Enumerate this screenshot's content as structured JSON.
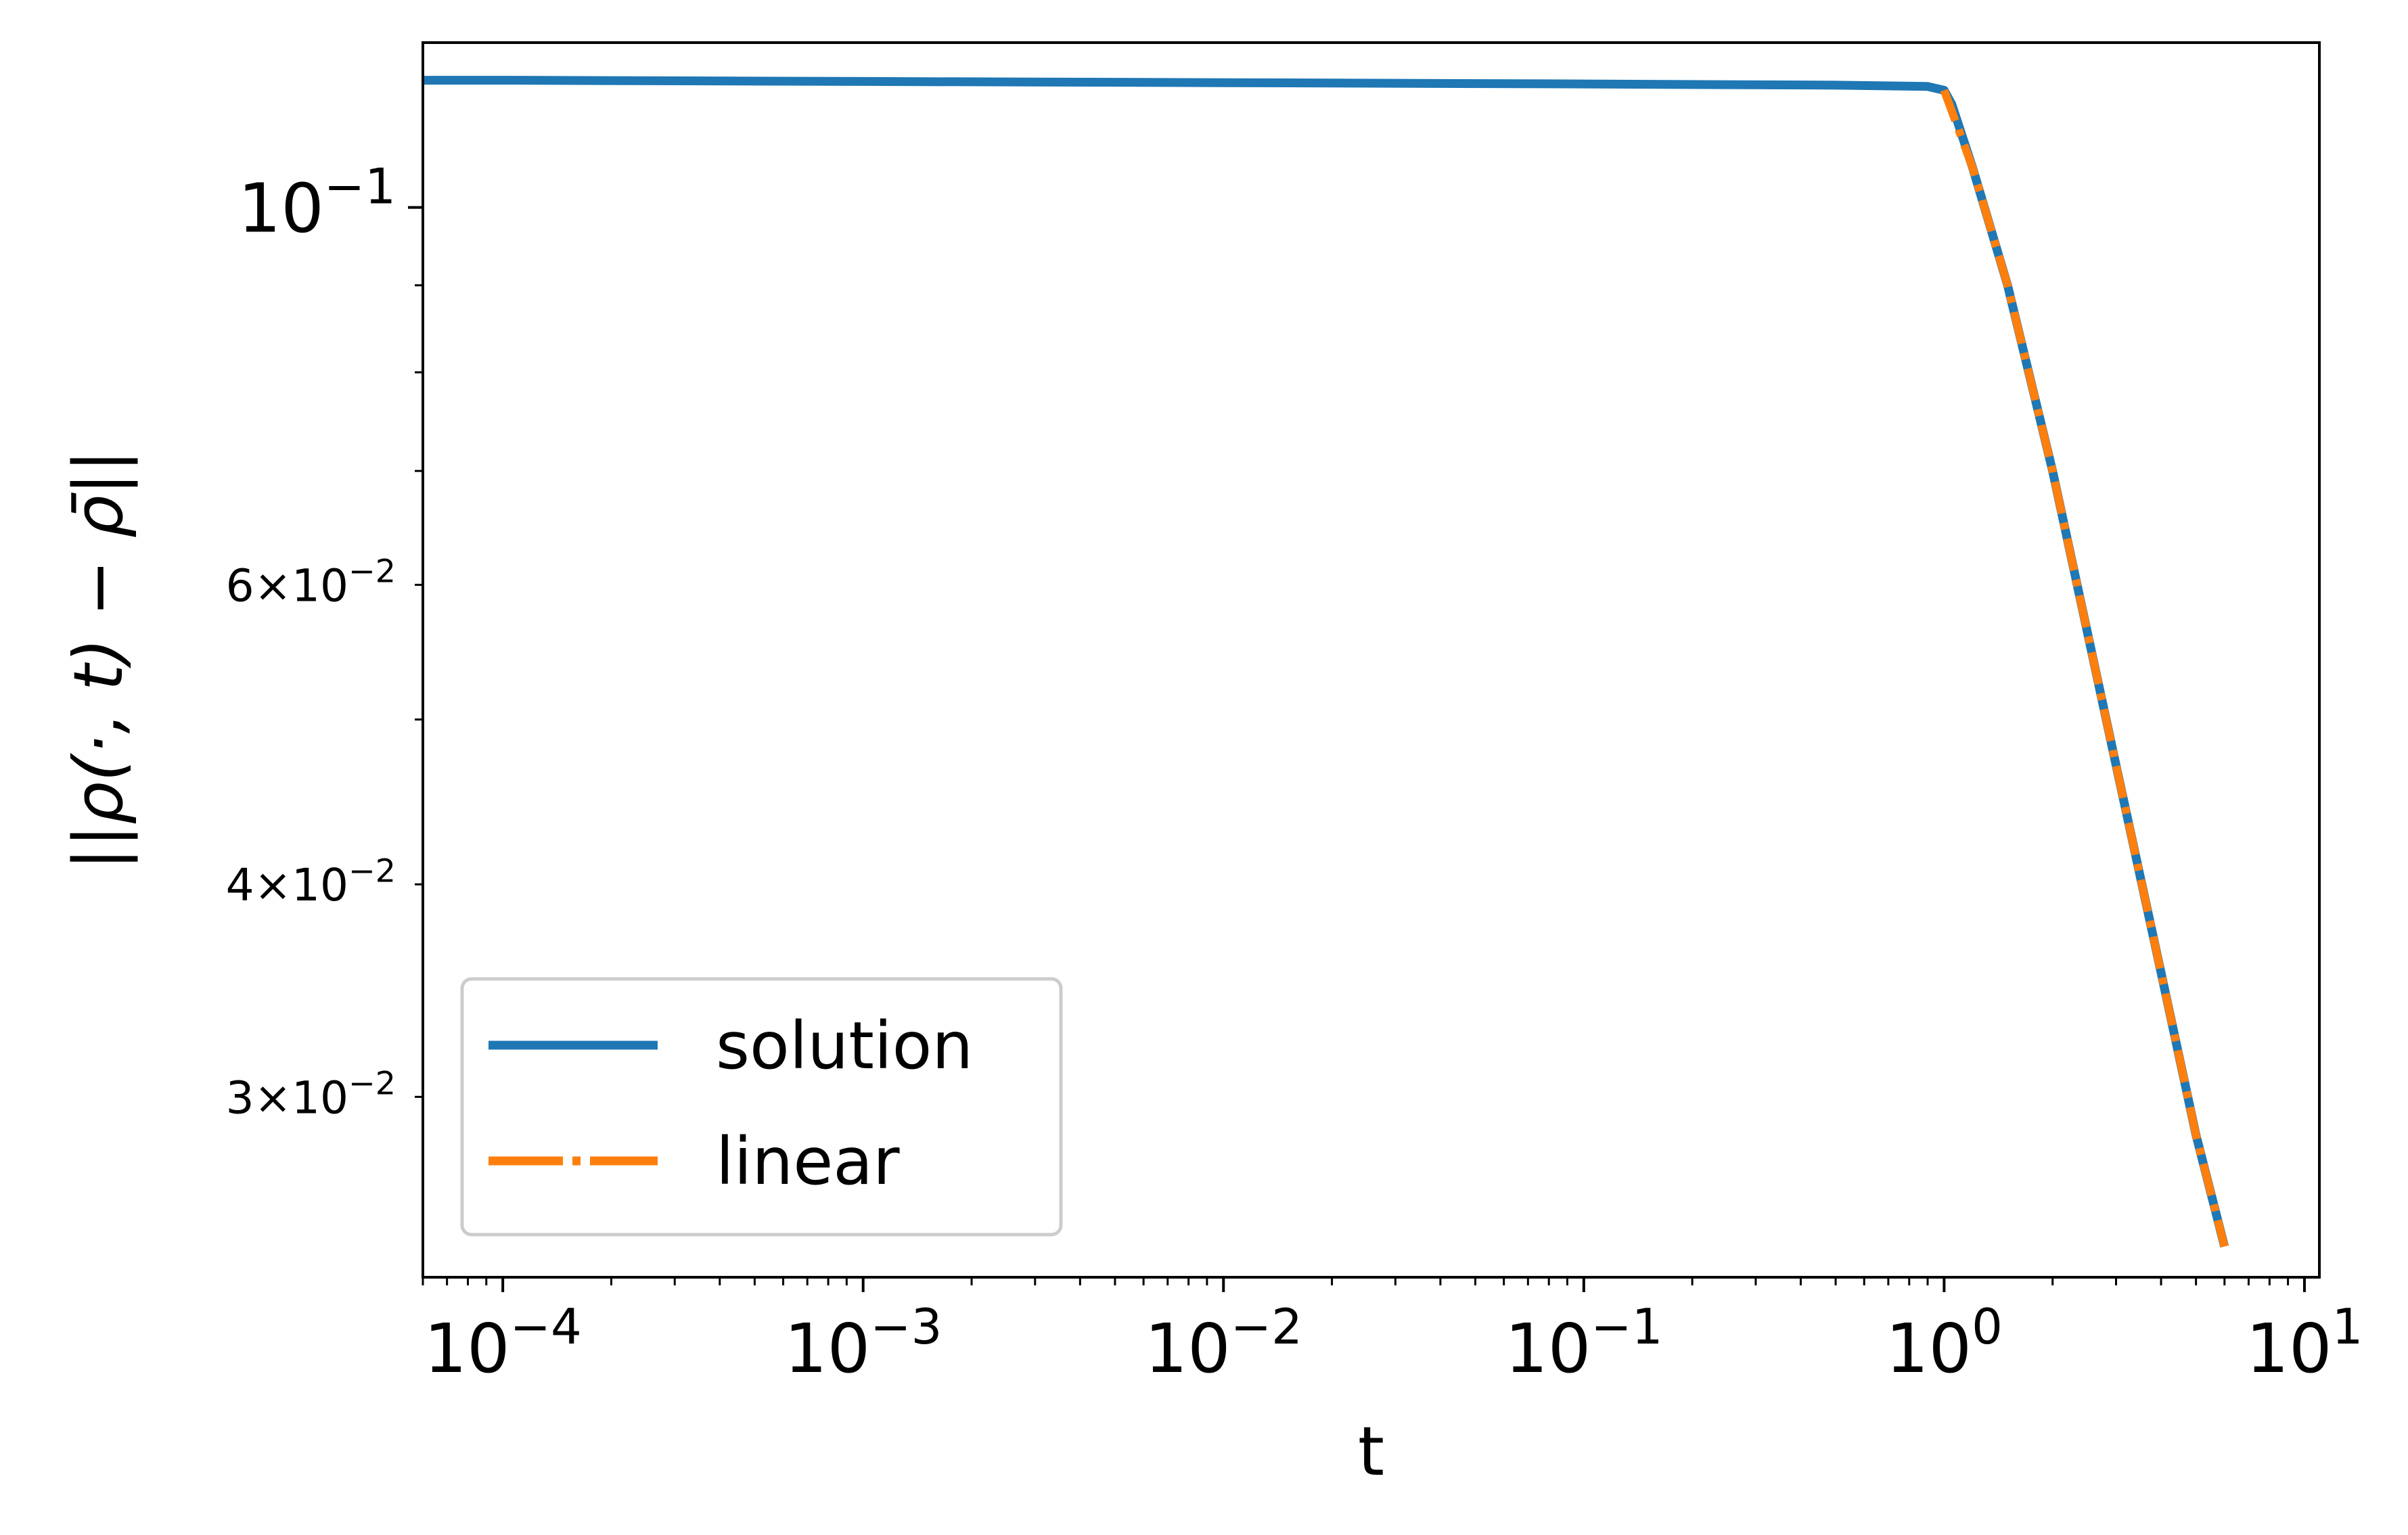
{
  "chart_data": {
    "type": "line",
    "xlabel": "t",
    "ylabel": "||ρ(·, t) − ρ̄||",
    "xscale": "log",
    "yscale": "log",
    "xlim": [
      6e-05,
      11
    ],
    "ylim": [
      0.0235,
      0.125
    ],
    "x_major_ticks": [
      {
        "value": 0.0001,
        "base": "10",
        "exp": "−4"
      },
      {
        "value": 0.001,
        "base": "10",
        "exp": "−3"
      },
      {
        "value": 0.01,
        "base": "10",
        "exp": "−2"
      },
      {
        "value": 0.1,
        "base": "10",
        "exp": "−1"
      },
      {
        "value": 1,
        "base": "10",
        "exp": "0"
      },
      {
        "value": 10,
        "base": "10",
        "exp": "1"
      }
    ],
    "y_major_ticks": [
      {
        "value": 0.1,
        "base": "10",
        "exp": "−1"
      }
    ],
    "y_minor_labels": [
      {
        "value": 0.06,
        "mantissa": "6",
        "exp": "−2"
      },
      {
        "value": 0.04,
        "mantissa": "4",
        "exp": "−2"
      },
      {
        "value": 0.03,
        "mantissa": "3",
        "exp": "−2"
      }
    ],
    "grid": false,
    "legend_position": "lower-left",
    "series": [
      {
        "name": "solution",
        "color": "#1f77b4",
        "style": "solid",
        "x": [
          6e-05,
          0.0001,
          0.001,
          0.01,
          0.1,
          0.5,
          0.9,
          1.0,
          1.05,
          1.2,
          1.5,
          2,
          3,
          4,
          5,
          6
        ],
        "y": [
          0.1188,
          0.1188,
          0.1186,
          0.1184,
          0.1182,
          0.118,
          0.1178,
          0.1172,
          0.115,
          0.1055,
          0.09,
          0.07,
          0.047,
          0.0355,
          0.0285,
          0.0245
        ]
      },
      {
        "name": "linear",
        "color": "#ff7f0e",
        "style": "dashdot",
        "x": [
          1.0,
          1.2,
          1.5,
          2,
          3,
          4,
          5,
          6
        ],
        "y": [
          0.1172,
          0.1055,
          0.09,
          0.07,
          0.047,
          0.0355,
          0.0285,
          0.0245
        ]
      }
    ]
  }
}
